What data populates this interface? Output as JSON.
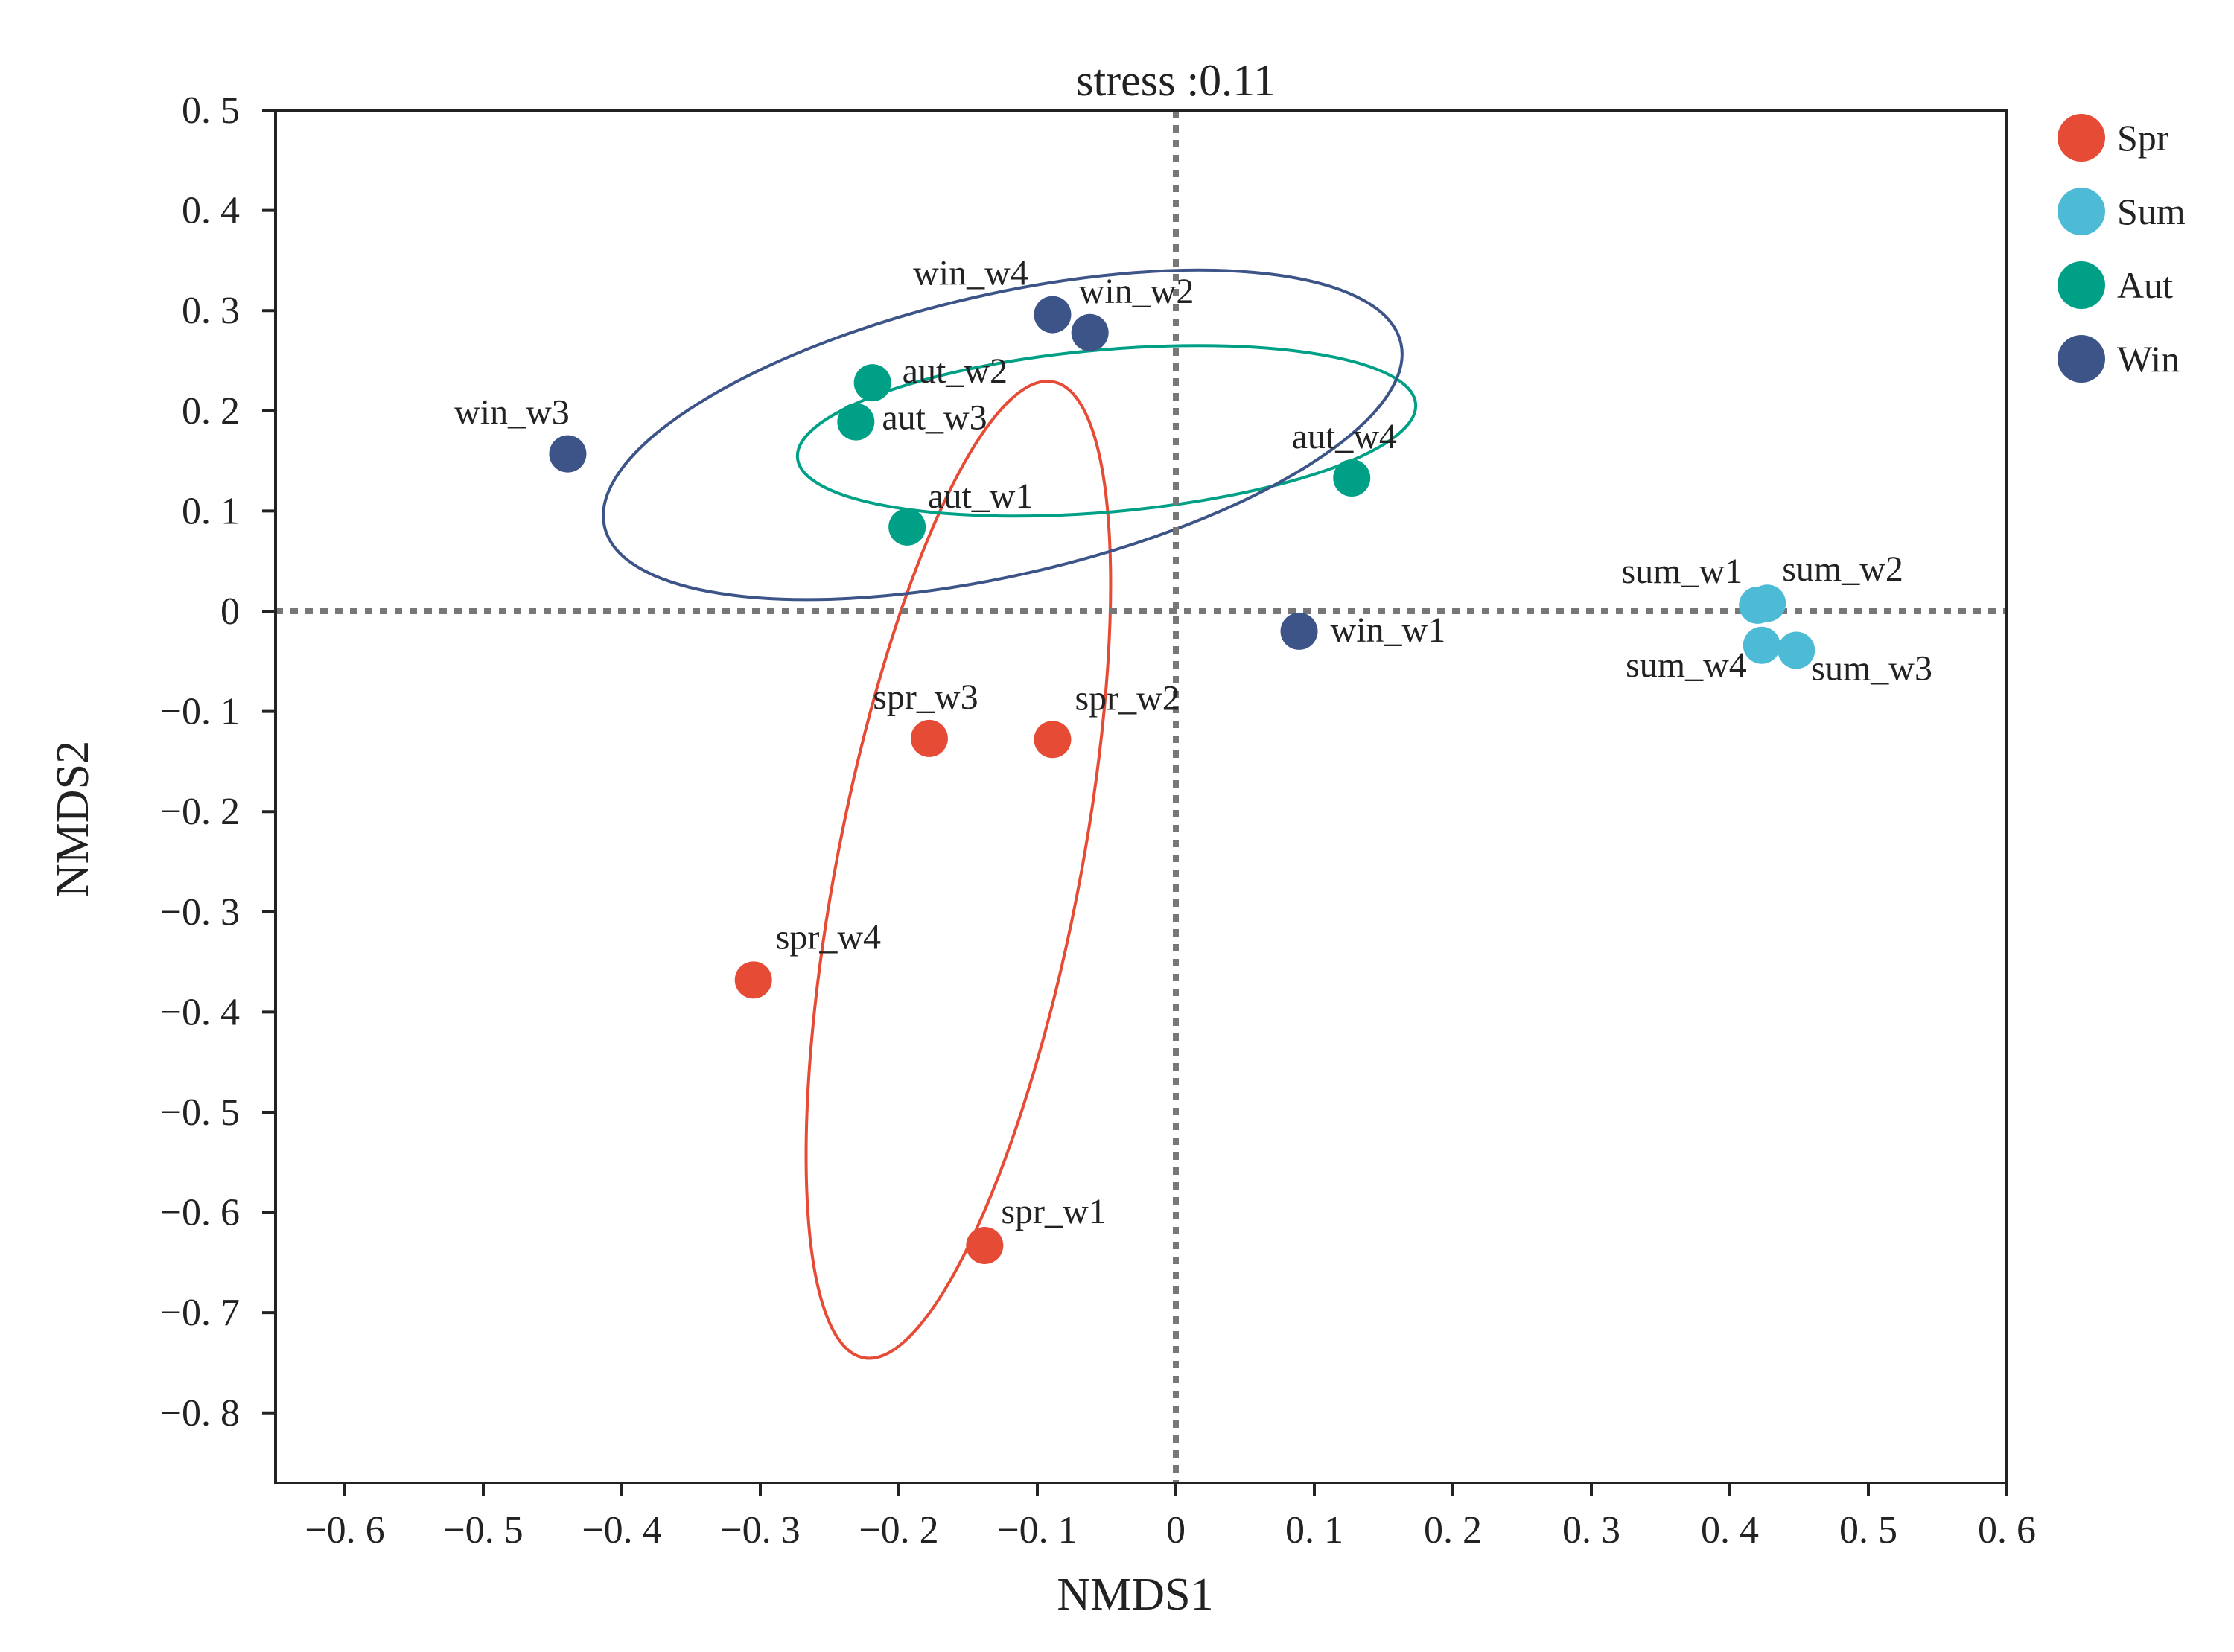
{
  "chart_data": {
    "type": "scatter",
    "title": "stress :0.11",
    "xlabel": "NMDS1",
    "ylabel": "NMDS2",
    "xlim": [
      -0.65,
      0.6
    ],
    "ylim": [
      -0.87,
      0.5
    ],
    "xticks": [
      -0.6,
      -0.5,
      -0.4,
      -0.3,
      -0.2,
      -0.1,
      0,
      0.1,
      0.2,
      0.3,
      0.4,
      0.5,
      0.6
    ],
    "xtick_labels": [
      "−0. 6",
      "−0. 5",
      "−0. 4",
      "−0. 3",
      "−0. 2",
      "−0. 1",
      "0",
      "0. 1",
      "0. 2",
      "0. 3",
      "0. 4",
      "0. 5",
      "0. 6"
    ],
    "yticks": [
      0.5,
      0.4,
      0.3,
      0.2,
      0.1,
      0,
      -0.1,
      -0.2,
      -0.3,
      -0.4,
      -0.5,
      -0.6,
      -0.7,
      -0.8
    ],
    "ytick_labels": [
      "0. 5",
      "0. 4",
      "0. 3",
      "0. 2",
      "0. 1",
      "0",
      "−0. 1",
      "−0. 2",
      "−0. 3",
      "−0. 4",
      "−0. 5",
      "−0. 6",
      "−0. 7",
      "−0. 8"
    ],
    "reference_lines": {
      "x": 0,
      "y": 0,
      "style": "dotted",
      "color": "#777777"
    },
    "grid": false,
    "legend_position": "right",
    "series": [
      {
        "name": "Spr",
        "color": "#E64B35",
        "points": [
          {
            "label": "spr_w1",
            "x": -0.138,
            "y": -0.633
          },
          {
            "label": "spr_w2",
            "x": -0.089,
            "y": -0.128
          },
          {
            "label": "spr_w3",
            "x": -0.178,
            "y": -0.127
          },
          {
            "label": "spr_w4",
            "x": -0.305,
            "y": -0.368
          }
        ],
        "ellipse": {
          "cx": -0.157,
          "cy": -0.258,
          "rx": 0.359,
          "ry": 0.121,
          "angle": -79
        }
      },
      {
        "name": "Sum",
        "color": "#4DBBD5",
        "points": [
          {
            "label": "sum_w1",
            "x": 0.42,
            "y": 0.006
          },
          {
            "label": "sum_w2",
            "x": 0.427,
            "y": 0.008
          },
          {
            "label": "sum_w3",
            "x": 0.448,
            "y": -0.039
          },
          {
            "label": "sum_w4",
            "x": 0.423,
            "y": -0.034
          }
        ]
      },
      {
        "name": "Aut",
        "color": "#00A087",
        "points": [
          {
            "label": "aut_w1",
            "x": -0.194,
            "y": 0.084
          },
          {
            "label": "aut_w2",
            "x": -0.219,
            "y": 0.228
          },
          {
            "label": "aut_w3",
            "x": -0.231,
            "y": 0.189
          },
          {
            "label": "aut_w4",
            "x": 0.127,
            "y": 0.133
          }
        ],
        "ellipse": {
          "cx": -0.05,
          "cy": 0.18,
          "rx": 0.224,
          "ry": 0.081,
          "angle": -5
        }
      },
      {
        "name": "Win",
        "color": "#3C5488",
        "points": [
          {
            "label": "win_w1",
            "x": 0.089,
            "y": -0.02
          },
          {
            "label": "win_w2",
            "x": -0.062,
            "y": 0.278
          },
          {
            "label": "win_w3",
            "x": -0.439,
            "y": 0.157
          },
          {
            "label": "win_w4",
            "x": -0.089,
            "y": 0.296
          }
        ],
        "ellipse": {
          "cx": -0.125,
          "cy": 0.176,
          "rx": 0.295,
          "ry": 0.14,
          "angle": -13
        }
      }
    ]
  }
}
